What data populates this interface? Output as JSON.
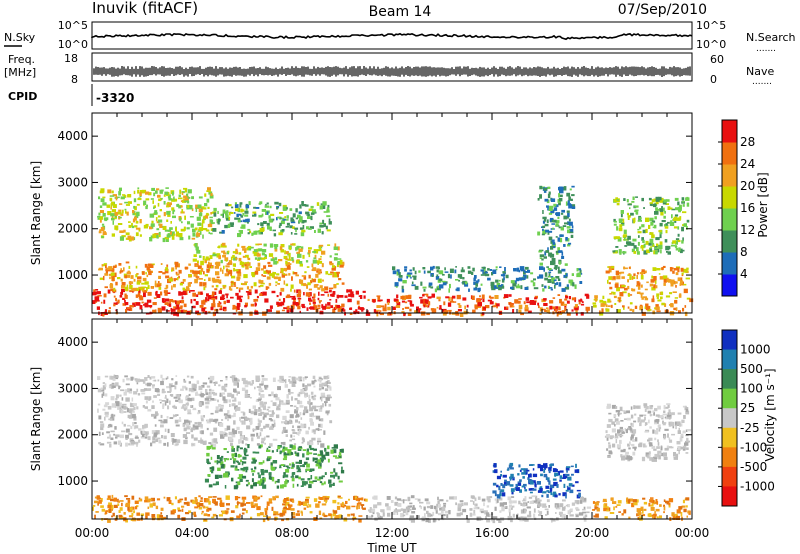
{
  "header": {
    "station": "Inuvik (fitACF)",
    "beam": "Beam 14",
    "date": "07/Sep/2010"
  },
  "strips": {
    "nsky_label": "N.Sky",
    "nsearch_label": "N.Search",
    "nsky_ticks": [
      "10^5",
      "10^0"
    ],
    "nsearch_ticks": [
      "10^5",
      "10^0"
    ],
    "freq_label_line1": "Freq.",
    "freq_label_line2": "[MHz]",
    "freq_ticks": [
      "8",
      "18"
    ],
    "nave_label": "Nave",
    "nave_ticks": [
      "60",
      "0"
    ],
    "cpid_label": "CPID",
    "cpid_value": "-3320",
    "dots": "......."
  },
  "chart_data": [
    {
      "type": "heatmap",
      "title": "",
      "xlabel": "Time UT",
      "ylabel": "Slant Range [km]",
      "x_ticks": [
        "00:00",
        "04:00",
        "08:00",
        "12:00",
        "16:00",
        "20:00",
        "00:00"
      ],
      "y_ticks": [
        1000,
        2000,
        3000,
        4000
      ],
      "xlim": [
        0,
        24
      ],
      "ylim": [
        180,
        4500
      ],
      "colorbar": {
        "label": "Power [dB]",
        "ticks": [
          4,
          8,
          12,
          16,
          20,
          24,
          28
        ],
        "range": [
          0,
          32
        ],
        "colors": [
          "#1010f0",
          "#1e6db8",
          "#3f8f5a",
          "#6fd04f",
          "#c8d800",
          "#f0a020",
          "#f07010",
          "#e81010"
        ]
      },
      "regions": [
        {
          "t": [
            0.0,
            11.0
          ],
          "r": [
            180,
            700
          ],
          "v": 29
        },
        {
          "t": [
            11.0,
            19.8
          ],
          "r": [
            180,
            600
          ],
          "v": 27
        },
        {
          "t": [
            20.0,
            23.9
          ],
          "r": [
            200,
            650
          ],
          "v": 22
        },
        {
          "t": [
            0.2,
            10.0
          ],
          "r": [
            700,
            1300
          ],
          "v": 22
        },
        {
          "t": [
            4.0,
            10.0
          ],
          "r": [
            1300,
            1700
          ],
          "v": 18
        },
        {
          "t": [
            0.2,
            4.8
          ],
          "r": [
            1800,
            2900
          ],
          "v": 17
        },
        {
          "t": [
            4.8,
            9.5
          ],
          "r": [
            1900,
            2600
          ],
          "v": 12
        },
        {
          "t": [
            20.8,
            23.8
          ],
          "r": [
            1500,
            2700
          ],
          "v": 14
        },
        {
          "t": [
            20.5,
            23.8
          ],
          "r": [
            700,
            1200
          ],
          "v": 22
        },
        {
          "t": [
            12.0,
            19.5
          ],
          "r": [
            700,
            1200
          ],
          "v": 9
        },
        {
          "t": [
            17.8,
            19.2
          ],
          "r": [
            1200,
            3000
          ],
          "v": 10
        }
      ]
    },
    {
      "type": "heatmap",
      "title": "",
      "xlabel": "Time UT",
      "ylabel": "Slant Range [km]",
      "x_ticks": [
        "00:00",
        "04:00",
        "08:00",
        "12:00",
        "16:00",
        "20:00",
        "00:00"
      ],
      "y_ticks": [
        1000,
        2000,
        3000,
        4000
      ],
      "xlim": [
        0,
        24
      ],
      "ylim": [
        180,
        4500
      ],
      "colorbar": {
        "label": "Velocity [m s⁻¹]",
        "ticks": [
          "1000",
          "500",
          "100",
          "25",
          "-25",
          "-100",
          "-500",
          "-1000"
        ],
        "colors": [
          "#1030c0",
          "#2080b0",
          "#3a8a55",
          "#70cc40",
          "#c8c8c8",
          "#f0c020",
          "#f08010",
          "#f04010",
          "#e81010"
        ]
      },
      "regions": [
        {
          "t": [
            0.0,
            11.0
          ],
          "r": [
            180,
            700
          ],
          "v": "orange"
        },
        {
          "t": [
            11.0,
            19.8
          ],
          "r": [
            180,
            700
          ],
          "v": "grey"
        },
        {
          "t": [
            20.0,
            23.9
          ],
          "r": [
            200,
            650
          ],
          "v": "orange"
        },
        {
          "t": [
            4.5,
            10.0
          ],
          "r": [
            900,
            1800
          ],
          "v": "green"
        },
        {
          "t": [
            0.2,
            9.5
          ],
          "r": [
            1800,
            3300
          ],
          "v": "grey"
        },
        {
          "t": [
            16.0,
            19.5
          ],
          "r": [
            700,
            1400
          ],
          "v": "blue"
        },
        {
          "t": [
            20.5,
            23.8
          ],
          "r": [
            1500,
            2700
          ],
          "v": "grey"
        }
      ]
    }
  ]
}
